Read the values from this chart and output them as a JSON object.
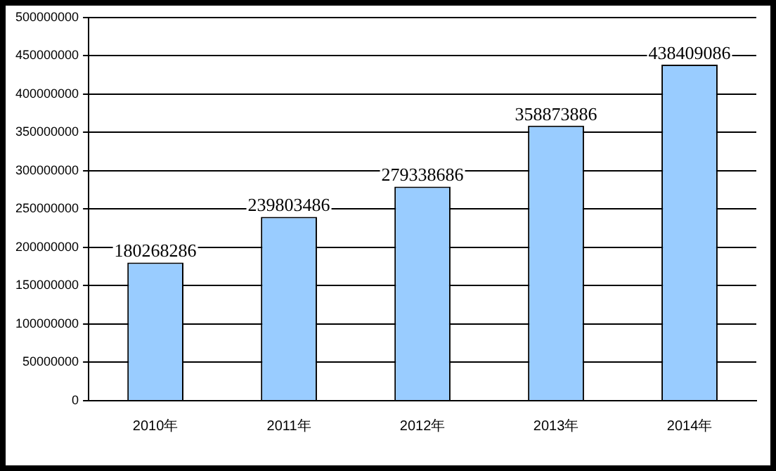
{
  "chart_data": {
    "type": "bar",
    "categories": [
      "2010年",
      "2011年",
      "2012年",
      "2013年",
      "2014年"
    ],
    "values": [
      180268286,
      239803486,
      279338686,
      358873886,
      438409086
    ],
    "color": "#99ccff",
    "ylim": [
      0,
      500000000
    ],
    "yticks": [
      0,
      50000000,
      100000000,
      150000000,
      200000000,
      250000000,
      300000000,
      350000000,
      400000000,
      450000000,
      500000000
    ],
    "grid": "y",
    "data_labels": true,
    "legend": false
  }
}
